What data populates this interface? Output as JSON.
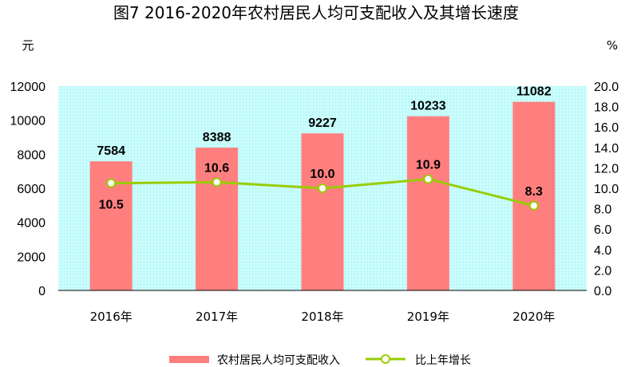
{
  "title": "图7   2016-2020年农村居民人均可支配收入及其增长速度",
  "colors": {
    "bar": "#ff7f7f",
    "line": "#99cc00",
    "plot_bg": "#ccffff",
    "marker_fill": "#ffffff"
  },
  "chart_data": {
    "type": "bar",
    "categories": [
      "2016年",
      "2017年",
      "2018年",
      "2019年",
      "2020年"
    ],
    "series": [
      {
        "name": "农村居民人均可支配收入",
        "type": "bar",
        "axis": "left",
        "values": [
          7584,
          8388,
          9227,
          10233,
          11082
        ]
      },
      {
        "name": "比上年增长",
        "type": "line",
        "axis": "right",
        "values": [
          10.5,
          10.6,
          10.0,
          10.9,
          8.3
        ]
      }
    ],
    "ylabel_left": "元",
    "ylabel_right": "%",
    "ylim_left": [
      0,
      12000
    ],
    "ylim_right": [
      0,
      20
    ],
    "yticks_left": [
      "0",
      "2000",
      "4000",
      "6000",
      "8000",
      "10000",
      "12000"
    ],
    "yticks_right": [
      "0.0",
      "2.0",
      "4.0",
      "6.0",
      "8.0",
      "10.0",
      "12.0",
      "14.0",
      "16.0",
      "18.0",
      "20.0"
    ],
    "bar_labels": [
      "7584",
      "8388",
      "9227",
      "10233",
      "11082"
    ],
    "line_labels": [
      "10.5",
      "10.6",
      "10.0",
      "10.9",
      "8.3"
    ],
    "legend_position": "bottom",
    "grid": true
  },
  "legend": {
    "bar_label": "农村居民人均可支配收入",
    "line_label": "比上年增长"
  }
}
